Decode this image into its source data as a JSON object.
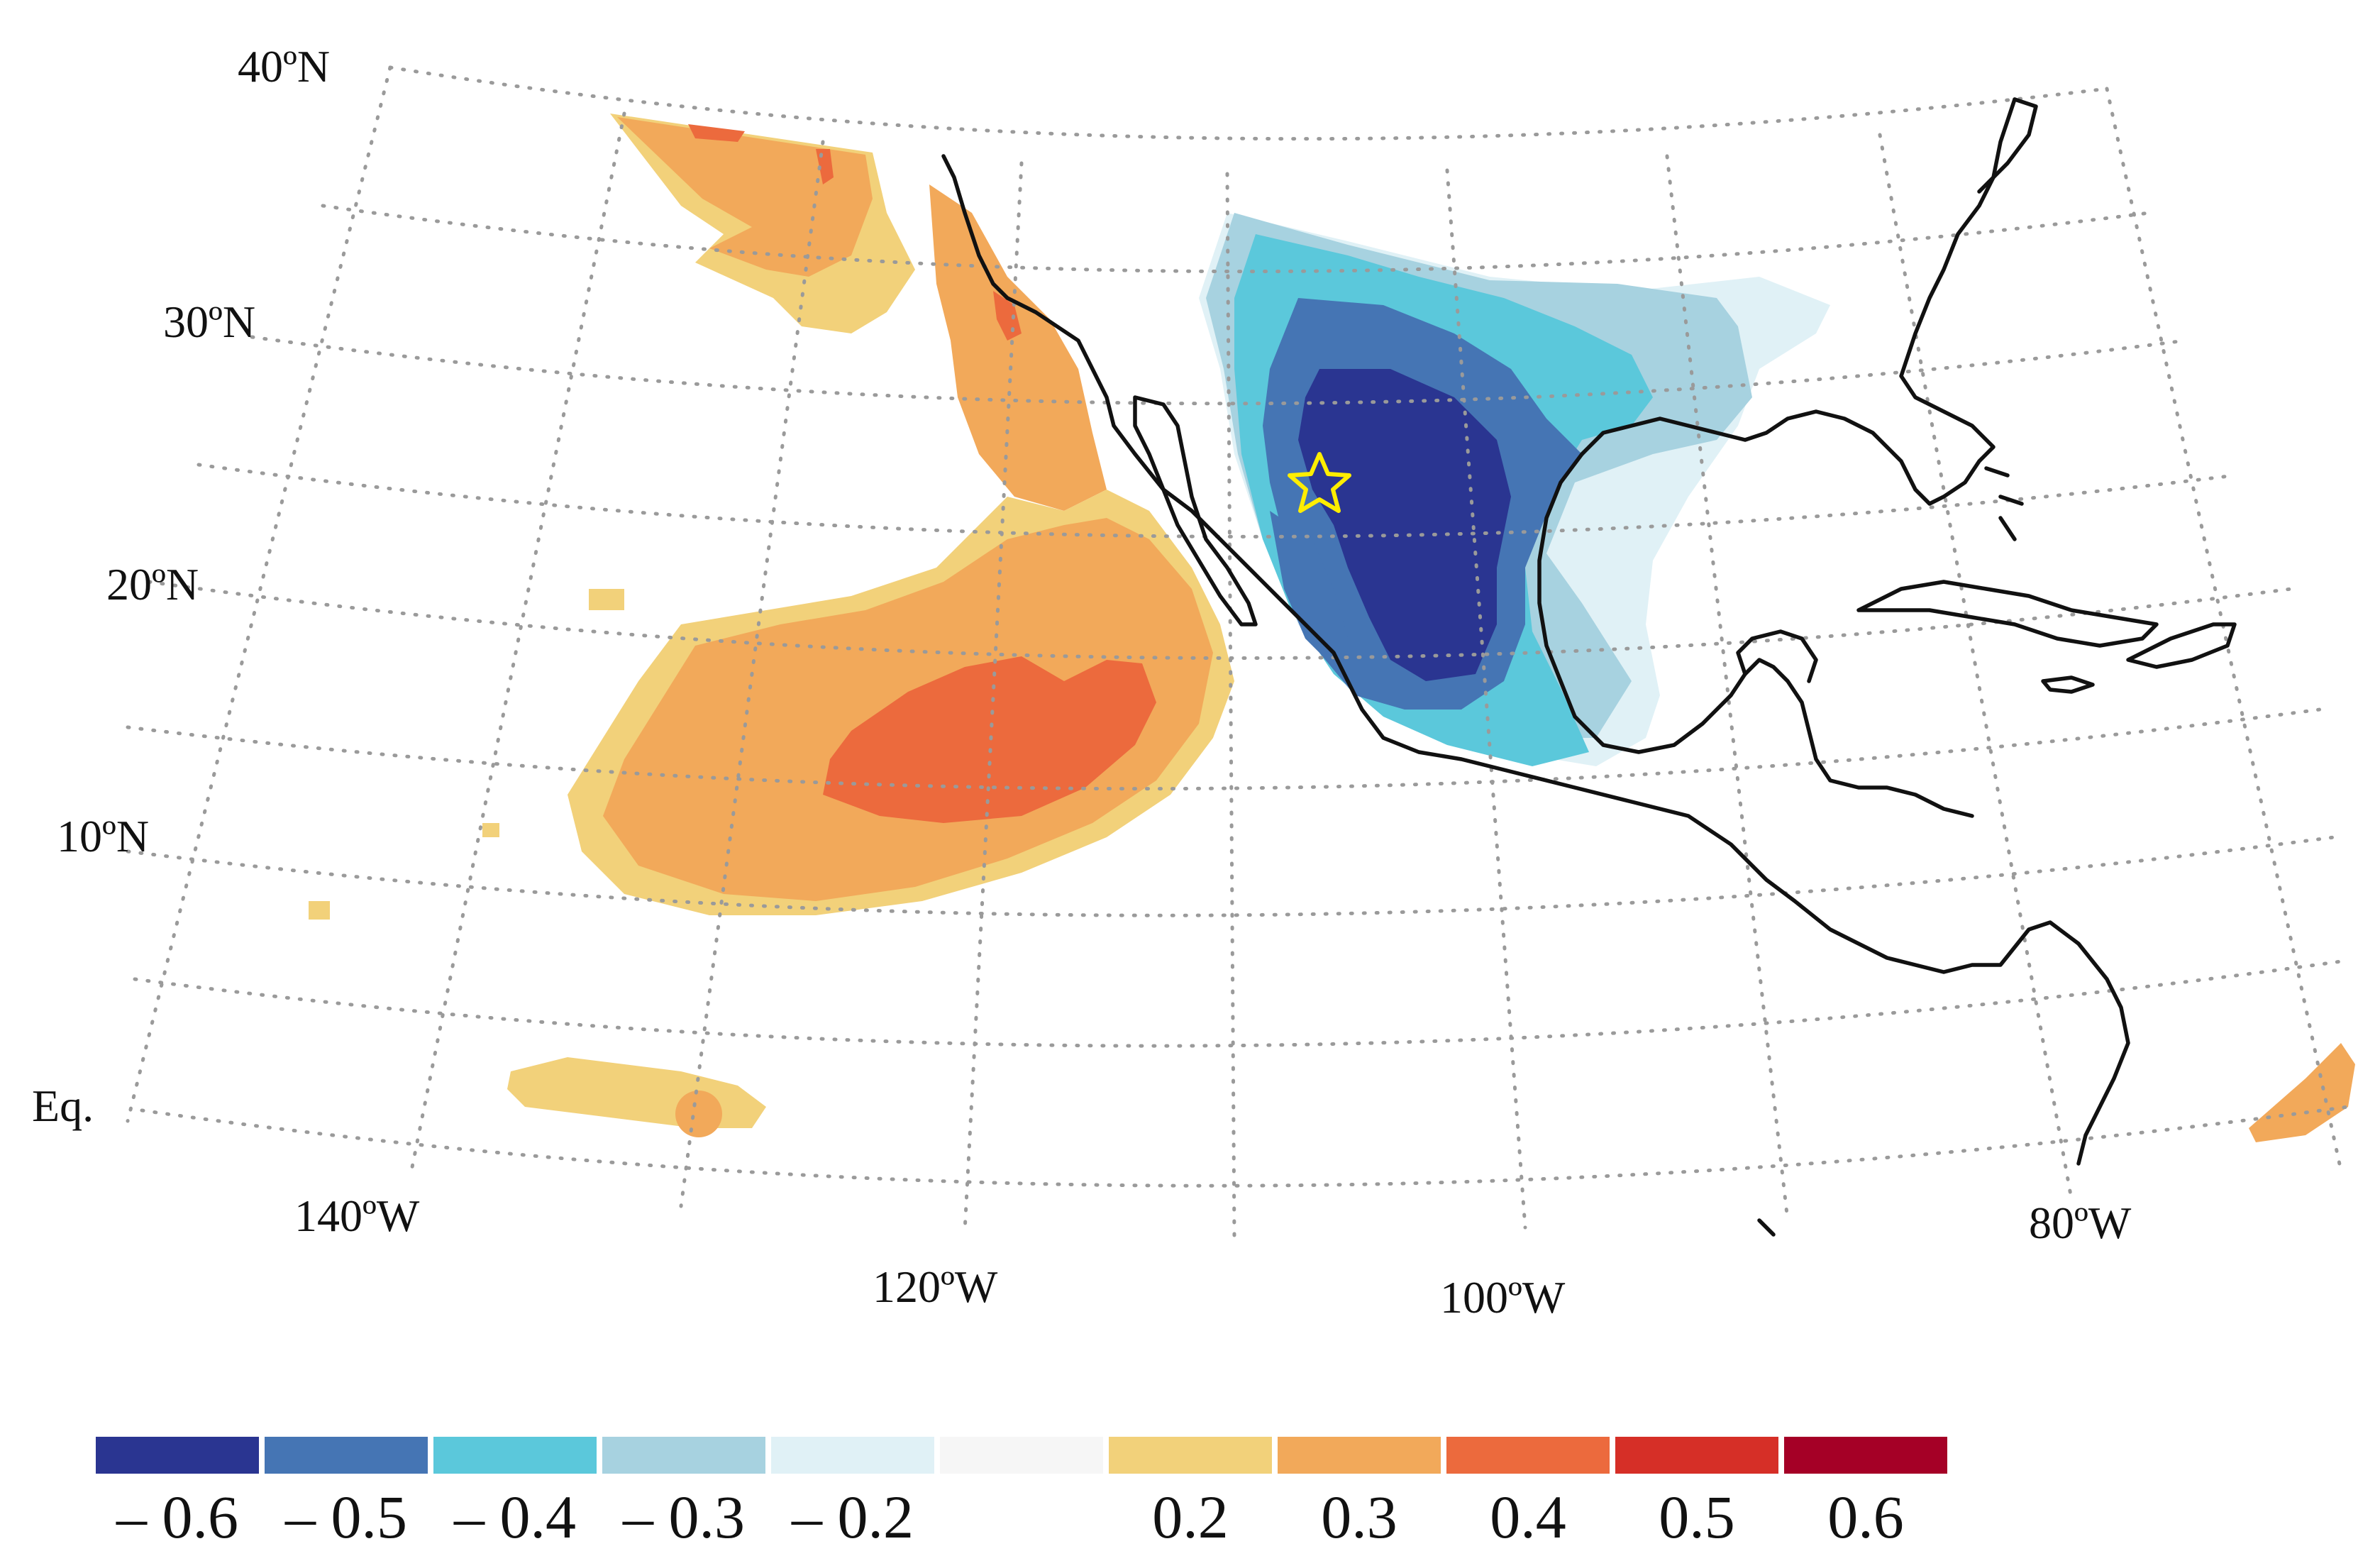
{
  "map": {
    "lat_labels": [
      "40ºN",
      "30ºN",
      "20ºN",
      "10ºN",
      "Eq."
    ],
    "lon_labels": [
      "140ºW",
      "120ºW",
      "100ºW",
      "80ºW"
    ],
    "marker": "star-marker",
    "marker_color": "#ffee00"
  },
  "colorbar": {
    "bins": [
      {
        "color": "#2a3591",
        "label": "– 0.6"
      },
      {
        "color": "#4575b4",
        "label": "– 0.5"
      },
      {
        "color": "#5bc8db",
        "label": "– 0.4"
      },
      {
        "color": "#a7d2e0",
        "label": "– 0.3"
      },
      {
        "color": "#e0f1f6",
        "label": "– 0.2"
      },
      {
        "color": "#f6f6f6",
        "label": ""
      },
      {
        "color": "#f2d17a",
        "label": "0.2"
      },
      {
        "color": "#f2a95a",
        "label": "0.3"
      },
      {
        "color": "#ec6a3d",
        "label": "0.4"
      },
      {
        "color": "#d62f27",
        "label": "0.5"
      },
      {
        "color": "#a50026",
        "label": "0.6"
      }
    ]
  }
}
